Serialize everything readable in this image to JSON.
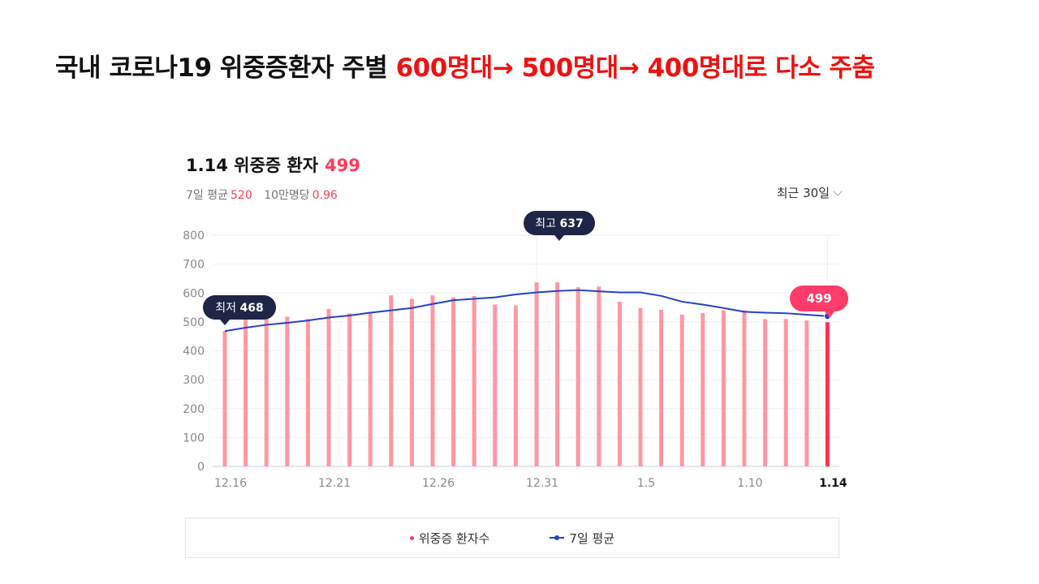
{
  "slide": {
    "title_main": "국내 코로나19 위중증환자 주별 ",
    "title_highlight": "600명대→ 500명대→ 400명대로 다소 주춤"
  },
  "card": {
    "date_label": "1.14 위중증 환자",
    "current_value": "499",
    "avg_label": "7일 평균",
    "avg_value": "520",
    "per_label": "10만명당",
    "per_value": "0.96",
    "range_label": "최근 30일"
  },
  "annotations": {
    "min_label": "최저",
    "min_value": "468",
    "max_label": "최고",
    "max_value": "637",
    "last_value": "499"
  },
  "colors": {
    "bar": "#ff97a5",
    "bar_last": "#ff3054",
    "line": "#2540c8",
    "tooltip": "#1e2546",
    "badge": "#ff3c6a",
    "highlight": "#ee1111"
  },
  "chart_data": {
    "type": "bar",
    "title": "1.14 위중증 환자",
    "ylim": [
      0,
      800
    ],
    "yticks": [
      "0",
      "100",
      "200",
      "300",
      "400",
      "500",
      "600",
      "700",
      "800"
    ],
    "x": [
      "12.16",
      "12.17",
      "12.18",
      "12.19",
      "12.20",
      "12.21",
      "12.22",
      "12.23",
      "12.24",
      "12.25",
      "12.26",
      "12.27",
      "12.28",
      "12.29",
      "12.30",
      "12.31",
      "1.1",
      "1.2",
      "1.3",
      "1.4",
      "1.5",
      "1.6",
      "1.7",
      "1.8",
      "1.9",
      "1.10",
      "1.11",
      "1.12",
      "1.13",
      "1.14"
    ],
    "xtick_labels": [
      {
        "index": 0,
        "label": "12.16"
      },
      {
        "index": 5,
        "label": "12.21"
      },
      {
        "index": 10,
        "label": "12.26"
      },
      {
        "index": 15,
        "label": "12.31"
      },
      {
        "index": 20,
        "label": "1.5"
      },
      {
        "index": 25,
        "label": "1.10"
      },
      {
        "index": 29,
        "label": "1.14"
      }
    ],
    "series": [
      {
        "name": "위중증 환자수",
        "type": "bar",
        "values": [
          468,
          520,
          515,
          518,
          510,
          545,
          530,
          532,
          592,
          580,
          592,
          585,
          590,
          560,
          557,
          637,
          637,
          620,
          622,
          570,
          548,
          542,
          525,
          530,
          540,
          540,
          510,
          510,
          505,
          499
        ]
      },
      {
        "name": "7일 평균",
        "type": "line",
        "values": [
          468,
          480,
          490,
          497,
          505,
          515,
          522,
          532,
          540,
          548,
          562,
          575,
          580,
          585,
          595,
          602,
          607,
          610,
          606,
          602,
          602,
          590,
          570,
          560,
          548,
          535,
          532,
          530,
          525,
          520
        ]
      }
    ],
    "legend": "bottom"
  }
}
